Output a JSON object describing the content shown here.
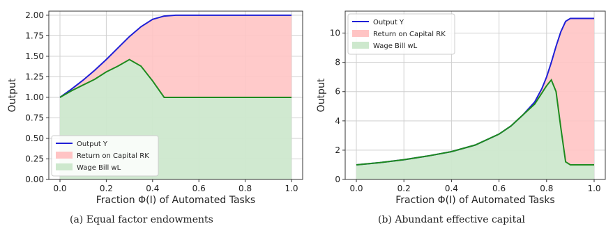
{
  "colors": {
    "output": "#1f1fd6",
    "capital_fill": "#ffc4c4",
    "wage_fill": "#cde8cd",
    "wage_line": "#1e8a1e"
  },
  "captions": {
    "a": "(a) Equal factor endowments",
    "b": "(b) Abundant effective capital"
  },
  "chart_data": [
    {
      "type": "area",
      "xlabel": "Fraction Φ(I) of Automated Tasks",
      "ylabel": "Output",
      "xlim": [
        0,
        1
      ],
      "ylim": [
        0,
        2.05
      ],
      "grid": true,
      "legend_position": "bottom-left",
      "xticks": [
        "0.0",
        "0.2",
        "0.4",
        "0.6",
        "0.8",
        "1.0"
      ],
      "yticks": [
        "0.00",
        "0.25",
        "0.50",
        "0.75",
        "1.00",
        "1.25",
        "1.50",
        "1.75",
        "2.00"
      ],
      "x": [
        0,
        0.05,
        0.1,
        0.15,
        0.2,
        0.25,
        0.3,
        0.35,
        0.4,
        0.45,
        0.5,
        0.55,
        0.6,
        0.65,
        0.7,
        0.75,
        0.8,
        0.85,
        0.9,
        0.95,
        1.0
      ],
      "series": [
        {
          "name": "Output Y",
          "role": "output",
          "values": [
            1.0,
            1.1,
            1.21,
            1.33,
            1.46,
            1.6,
            1.74,
            1.86,
            1.95,
            1.99,
            2.0,
            2.0,
            2.0,
            2.0,
            2.0,
            2.0,
            2.0,
            2.0,
            2.0,
            2.0,
            2.0
          ]
        },
        {
          "name": "Return on Capital RK",
          "role": "capital",
          "values": [
            0,
            0.02,
            0.07,
            0.13,
            0.21,
            0.31,
            0.28,
            0.5,
            0.76,
            0.99,
            1.0,
            1.0,
            1.0,
            1.0,
            1.0,
            1.0,
            1.0,
            1.0,
            1.0,
            1.0,
            1.0
          ]
        },
        {
          "name": "Wage Bill wL",
          "role": "wage",
          "values": [
            1.0,
            1.08,
            1.15,
            1.22,
            1.31,
            1.38,
            1.46,
            1.38,
            1.2,
            1.0,
            1.0,
            1.0,
            1.0,
            1.0,
            1.0,
            1.0,
            1.0,
            1.0,
            1.0,
            1.0,
            1.0
          ]
        }
      ]
    },
    {
      "type": "area",
      "xlabel": "Fraction Φ(I) of Automated Tasks",
      "ylabel": "Output",
      "xlim": [
        0,
        1
      ],
      "ylim": [
        0,
        11.5
      ],
      "grid": true,
      "legend_position": "top-left",
      "xticks": [
        "0.0",
        "0.2",
        "0.4",
        "0.6",
        "0.8",
        "1.0"
      ],
      "yticks": [
        "0",
        "2",
        "4",
        "6",
        "8",
        "10"
      ],
      "x": [
        0,
        0.1,
        0.2,
        0.3,
        0.4,
        0.5,
        0.6,
        0.65,
        0.7,
        0.75,
        0.78,
        0.8,
        0.82,
        0.84,
        0.86,
        0.88,
        0.9,
        0.92,
        0.95,
        1.0
      ],
      "series": [
        {
          "name": "Output Y",
          "role": "output",
          "values": [
            1.0,
            1.15,
            1.35,
            1.6,
            1.9,
            2.35,
            3.1,
            3.65,
            4.4,
            5.3,
            6.2,
            7.0,
            8.0,
            9.1,
            10.1,
            10.8,
            11.0,
            11.0,
            11.0,
            11.0
          ]
        },
        {
          "name": "Return on Capital RK",
          "role": "capital",
          "values": [
            0,
            0,
            0,
            0,
            0,
            0,
            0,
            0,
            0,
            0.15,
            0.3,
            0.6,
            1.2,
            3.1,
            6.6,
            9.6,
            10.0,
            10.0,
            10.0,
            10.0
          ]
        },
        {
          "name": "Wage Bill wL",
          "role": "wage",
          "values": [
            1.0,
            1.15,
            1.35,
            1.6,
            1.9,
            2.35,
            3.1,
            3.65,
            4.4,
            5.15,
            5.9,
            6.4,
            6.8,
            6.0,
            3.5,
            1.2,
            1.0,
            1.0,
            1.0,
            1.0
          ]
        }
      ]
    }
  ]
}
